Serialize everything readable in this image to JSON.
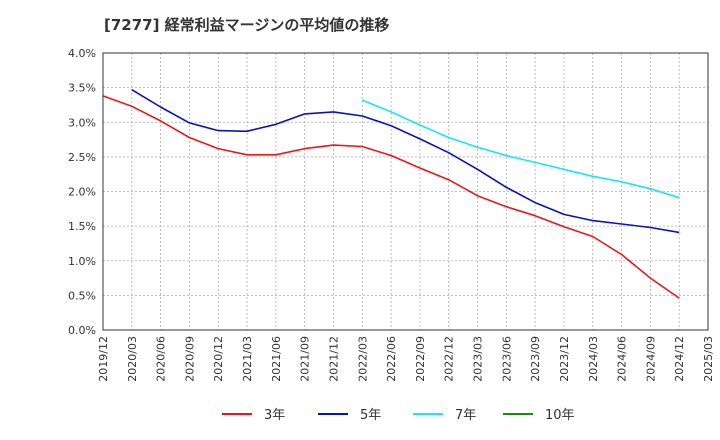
{
  "chart_data": {
    "type": "line",
    "title": "[7277]  経常利益マージンの平均値の推移",
    "xlabel": "",
    "ylabel": "",
    "x_ticks": [
      "2019/12",
      "2020/03",
      "2020/06",
      "2020/09",
      "2020/12",
      "2021/03",
      "2021/06",
      "2021/09",
      "2021/12",
      "2022/03",
      "2022/06",
      "2022/09",
      "2022/12",
      "2023/03",
      "2023/06",
      "2023/09",
      "2023/12",
      "2024/03",
      "2024/06",
      "2024/09",
      "2024/12",
      "2025/03"
    ],
    "y_ticks": [
      "0.0%",
      "0.5%",
      "1.0%",
      "1.5%",
      "2.0%",
      "2.5%",
      "3.0%",
      "3.5%",
      "4.0%"
    ],
    "ylim": [
      0,
      4.0
    ],
    "grid": true,
    "legend_position": "bottom",
    "series": [
      {
        "name": "3年",
        "color": "#e31a1c",
        "start_index": 0,
        "values": [
          3.38,
          3.23,
          3.02,
          2.78,
          2.62,
          2.53,
          2.53,
          2.62,
          2.67,
          2.65,
          2.52,
          2.34,
          2.17,
          1.94,
          1.78,
          1.65,
          1.49,
          1.35,
          1.09,
          0.75,
          0.46
        ]
      },
      {
        "name": "5年",
        "color": "#0a14b4",
        "start_index": 1,
        "values": [
          3.47,
          3.22,
          2.99,
          2.88,
          2.87,
          2.97,
          3.12,
          3.15,
          3.09,
          2.95,
          2.76,
          2.56,
          2.32,
          2.06,
          1.84,
          1.67,
          1.58,
          1.53,
          1.48,
          1.41
        ]
      },
      {
        "name": "7年",
        "color": "#19e6f0",
        "start_index": 9,
        "values": [
          3.32,
          3.15,
          2.96,
          2.78,
          2.64,
          2.52,
          2.42,
          2.32,
          2.22,
          2.14,
          2.04,
          1.91
        ]
      },
      {
        "name": "10年",
        "color": "#1a8a1a",
        "start_index": 0,
        "values": []
      }
    ]
  }
}
